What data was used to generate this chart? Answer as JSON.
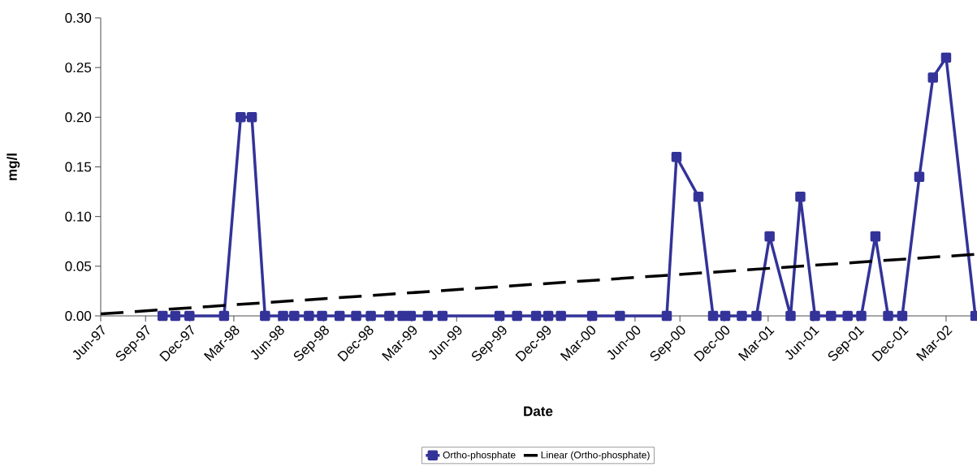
{
  "chart_data": {
    "type": "line",
    "xlabel": "Date",
    "ylabel": "mg/l",
    "x": [
      "1997-10-06",
      "1997-11-01",
      "1997-11-30",
      "1998-02-09",
      "1998-03-15",
      "1998-04-07",
      "1998-05-04",
      "1998-06-10",
      "1998-07-03",
      "1998-08-02",
      "1998-08-29",
      "1998-10-04",
      "1998-11-07",
      "1998-12-07",
      "1999-01-14",
      "1999-02-10",
      "1999-02-27",
      "1999-04-03",
      "1999-05-03",
      "1999-08-28",
      "1999-10-03",
      "1999-11-11",
      "1999-12-06",
      "2000-01-01",
      "2000-03-05",
      "2000-05-01",
      "2000-08-05",
      "2000-08-25",
      "2000-10-09",
      "2000-11-08",
      "2000-12-03",
      "2001-01-06",
      "2001-02-05",
      "2001-03-04",
      "2001-04-16",
      "2001-05-06",
      "2001-06-05",
      "2001-07-08",
      "2001-08-11",
      "2001-09-08",
      "2001-10-07",
      "2001-11-02",
      "2001-12-01",
      "2002-01-05",
      "2002-02-02",
      "2002-03-01",
      "2002-04-30"
    ],
    "series": [
      {
        "name": "Ortho-phosphate",
        "color": "#333399",
        "marker": "square",
        "line_style": "solid",
        "values": [
          0,
          0,
          0,
          0,
          0.2,
          0.2,
          0,
          0,
          0,
          0,
          0,
          0,
          0,
          0,
          0,
          0,
          0,
          0,
          0,
          0,
          0,
          0,
          0,
          0,
          0,
          0,
          0,
          0.16,
          0.12,
          0,
          0,
          0,
          0,
          0.08,
          0,
          0.12,
          0,
          0,
          0,
          0,
          0.08,
          0,
          0,
          0.14,
          0.24,
          0.26,
          0
        ]
      },
      {
        "name": "Linear (Ortho-phosphate)",
        "color": "#000000",
        "marker": "none",
        "line_style": "dashed",
        "x": [
          "1997-06-01",
          "2002-04-30"
        ],
        "values": [
          0.002,
          0.062
        ]
      }
    ],
    "xlim": [
      "1997-06-01",
      "2002-04-30"
    ],
    "xticks": [
      {
        "value": "1997-06-01",
        "label": "Jun-97"
      },
      {
        "value": "1997-09-01",
        "label": "Sep-97"
      },
      {
        "value": "1997-12-01",
        "label": "Dec-97"
      },
      {
        "value": "1998-03-01",
        "label": "Mar-98"
      },
      {
        "value": "1998-06-01",
        "label": "Jun-98"
      },
      {
        "value": "1998-09-01",
        "label": "Sep-98"
      },
      {
        "value": "1998-12-01",
        "label": "Dec-98"
      },
      {
        "value": "1999-03-01",
        "label": "Mar-99"
      },
      {
        "value": "1999-06-01",
        "label": "Jun-99"
      },
      {
        "value": "1999-09-01",
        "label": "Sep-99"
      },
      {
        "value": "1999-12-01",
        "label": "Dec-99"
      },
      {
        "value": "2000-03-01",
        "label": "Mar-00"
      },
      {
        "value": "2000-06-01",
        "label": "Jun-00"
      },
      {
        "value": "2000-09-01",
        "label": "Sep-00"
      },
      {
        "value": "2000-12-01",
        "label": "Dec-00"
      },
      {
        "value": "2001-03-01",
        "label": "Mar-01"
      },
      {
        "value": "2001-06-01",
        "label": "Jun-01"
      },
      {
        "value": "2001-09-01",
        "label": "Sep-01"
      },
      {
        "value": "2001-12-01",
        "label": "Dec-01"
      },
      {
        "value": "2002-03-01",
        "label": "Mar-02"
      }
    ],
    "ylim": [
      0,
      0.3
    ],
    "yticks": [
      {
        "value": 0,
        "label": "0.00"
      },
      {
        "value": 0.05,
        "label": "0.05"
      },
      {
        "value": 0.1,
        "label": "0.10"
      },
      {
        "value": 0.15,
        "label": "0.15"
      },
      {
        "value": 0.2,
        "label": "0.20"
      },
      {
        "value": 0.25,
        "label": "0.25"
      },
      {
        "value": 0.3,
        "label": "0.30"
      }
    ],
    "grid": false,
    "legend": "bottom"
  }
}
